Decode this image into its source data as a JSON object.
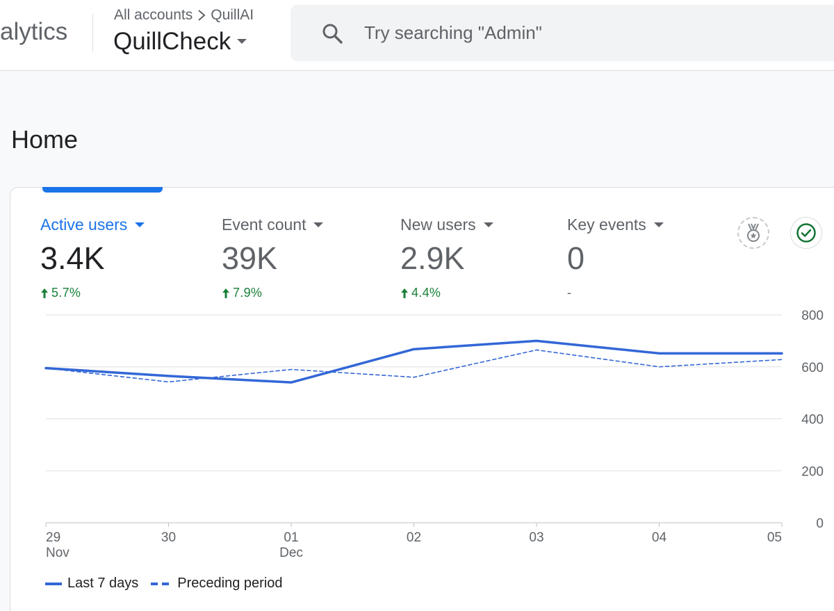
{
  "header": {
    "product_name": "alytics",
    "breadcrumb_account": "All accounts",
    "breadcrumb_property": "QuillAI",
    "property_name": "QuillCheck",
    "search_placeholder": "Try searching \"Admin\""
  },
  "page": {
    "title": "Home"
  },
  "metrics": [
    {
      "label": "Active users",
      "value": "3.4K",
      "change": "5.7%",
      "direction": "up",
      "selected": true
    },
    {
      "label": "Event count",
      "value": "39K",
      "change": "7.9%",
      "direction": "up",
      "selected": false
    },
    {
      "label": "New users",
      "value": "2.9K",
      "change": "4.4%",
      "direction": "up",
      "selected": false
    },
    {
      "label": "Key events",
      "value": "0",
      "change": "-",
      "direction": "none",
      "selected": false
    }
  ],
  "icons": {
    "medal": "medal-icon",
    "check": "check-circle-icon"
  },
  "colors": {
    "accent": "#1a73e8",
    "line": "#3367d6",
    "positive": "#188038",
    "grid": "#e0e0e0"
  },
  "legend": {
    "current": "Last 7 days",
    "previous": "Preceding period"
  },
  "chart_data": {
    "type": "line",
    "title": "Active users",
    "categories": [
      "29 Nov",
      "30",
      "01 Dec",
      "02",
      "03",
      "04",
      "05"
    ],
    "x_ticks": [
      {
        "day": "29",
        "month": "Nov"
      },
      {
        "day": "30",
        "month": ""
      },
      {
        "day": "01",
        "month": "Dec"
      },
      {
        "day": "02",
        "month": ""
      },
      {
        "day": "03",
        "month": ""
      },
      {
        "day": "04",
        "month": ""
      },
      {
        "day": "05",
        "month": ""
      }
    ],
    "y_ticks": [
      "800",
      "600",
      "400",
      "200",
      "0"
    ],
    "ylim": [
      0,
      800
    ],
    "series": [
      {
        "name": "Last 7 days",
        "style": "solid",
        "values": [
          595,
          565,
          540,
          668,
          700,
          652,
          652
        ]
      },
      {
        "name": "Preceding period",
        "style": "dashed",
        "values": [
          595,
          542,
          590,
          560,
          665,
          600,
          628
        ]
      }
    ],
    "legend_position": "bottom-left",
    "grid": true
  }
}
